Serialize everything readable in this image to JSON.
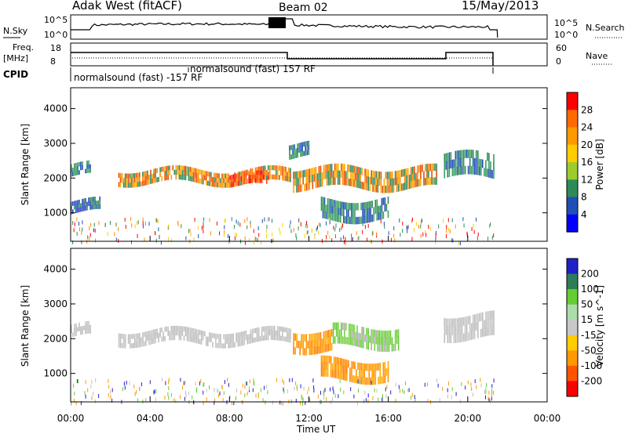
{
  "header": {
    "title": "Adak West (fitACF)",
    "beam": "Beam 02",
    "date": "15/May/2013"
  },
  "panels": {
    "nsky": {
      "label": "N.Sky",
      "left_ticks": [
        "10^5",
        "10^0"
      ],
      "right_ticks": [
        "10^5",
        "10^0"
      ],
      "right_label": "N.Search"
    },
    "freq": {
      "label_line1": "Freq.",
      "label_line2": "[MHz]",
      "left_ticks": [
        "18",
        "8"
      ],
      "right_ticks": [
        "60",
        "0"
      ],
      "right_label": "Nave"
    },
    "cpid": {
      "label": "CPID",
      "segments": [
        "normalsound (fast) -157 RF",
        "normalsound (fast) 157 RF"
      ]
    }
  },
  "chart_data": [
    {
      "type": "heatmap",
      "title": "",
      "ylabel": "Slant Range [km]",
      "xlabel": "",
      "ylim": [
        180,
        4600
      ],
      "yticks": [
        "4000",
        "3000",
        "2000",
        "1000"
      ],
      "xlim": [
        0,
        24
      ],
      "colorbar": {
        "label": "Power [dB]",
        "ticks": [
          "28",
          "24",
          "20",
          "16",
          "12",
          "8",
          "4"
        ],
        "colors": [
          "#ff0000",
          "#ff6a00",
          "#ff9900",
          "#ffcc00",
          "#9ccc2c",
          "#2e8b57",
          "#1f4fb5",
          "#0000ff"
        ]
      },
      "echo_bands": [
        {
          "t0": 0.0,
          "t1": 1.0,
          "r0": 2050,
          "r1": 2400,
          "level": "green"
        },
        {
          "t0": 2.4,
          "t1": 11.1,
          "r0": 1850,
          "r1": 2250,
          "level": "orange"
        },
        {
          "t0": 8.0,
          "t1": 10.0,
          "r0": 1750,
          "r1": 2100,
          "level": "red"
        },
        {
          "t0": 11.2,
          "t1": 18.4,
          "r0": 1700,
          "r1": 2300,
          "level": "orange"
        },
        {
          "t0": 11.0,
          "t1": 12.0,
          "r0": 2600,
          "r1": 3000,
          "level": "green"
        },
        {
          "t0": 12.6,
          "t1": 16.0,
          "r0": 800,
          "r1": 1400,
          "level": "green"
        },
        {
          "t0": 0.0,
          "t1": 1.5,
          "r0": 1000,
          "r1": 1350,
          "level": "blue"
        },
        {
          "t0": 18.8,
          "t1": 21.3,
          "r0": 2000,
          "r1": 2700,
          "level": "green"
        }
      ]
    },
    {
      "type": "heatmap",
      "title": "",
      "ylabel": "Slant Range [km]",
      "xlabel": "Time UT",
      "ylim": [
        180,
        4600
      ],
      "yticks": [
        "4000",
        "3000",
        "2000",
        "1000"
      ],
      "xticks": [
        "00:00",
        "04:00",
        "08:00",
        "12:00",
        "16:00",
        "20:00",
        "00:00"
      ],
      "xlim": [
        0,
        24
      ],
      "colorbar": {
        "label": "Velocity [m s^-1]",
        "ticks": [
          "200",
          "100",
          "50",
          "15",
          "-15",
          "-50",
          "-100",
          "-200"
        ],
        "colors": [
          "#2020c8",
          "#2e7d5a",
          "#66cc33",
          "#aaddaa",
          "#c8c8c8",
          "#ffcc00",
          "#ff9900",
          "#ff5500",
          "#ff0000"
        ]
      },
      "echo_bands": [
        {
          "t0": 0.0,
          "t1": 1.0,
          "r0": 2050,
          "r1": 2400,
          "level": "gray"
        },
        {
          "t0": 2.4,
          "t1": 11.1,
          "r0": 1850,
          "r1": 2250,
          "level": "gray"
        },
        {
          "t0": 11.2,
          "t1": 13.2,
          "r0": 1650,
          "r1": 2250,
          "level": "orange"
        },
        {
          "t0": 13.2,
          "t1": 16.5,
          "r0": 1750,
          "r1": 2350,
          "level": "green"
        },
        {
          "t0": 12.6,
          "t1": 16.0,
          "r0": 800,
          "r1": 1400,
          "level": "orange"
        },
        {
          "t0": 18.8,
          "t1": 21.3,
          "r0": 2000,
          "r1": 2700,
          "level": "gray"
        }
      ]
    }
  ]
}
